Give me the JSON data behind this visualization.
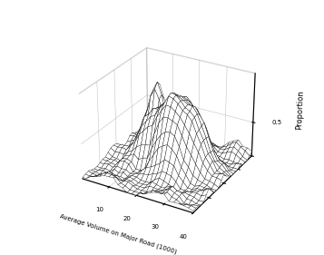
{
  "xlabel": "Average Volume on Major Road (1000)",
  "zlabel": "Proportion",
  "xlim": [
    0,
    40
  ],
  "ylim": [
    0,
    40
  ],
  "zlim": [
    0,
    1.2
  ],
  "xticks": [
    10,
    20,
    30,
    40
  ],
  "yticks": [
    10,
    20,
    30,
    40
  ],
  "zticks": [
    0.5
  ],
  "elev": 28,
  "azim": -60,
  "surface_color": "white",
  "edge_color": "black",
  "background_color": "white",
  "figsize": [
    3.57,
    2.81
  ],
  "dpi": 100
}
